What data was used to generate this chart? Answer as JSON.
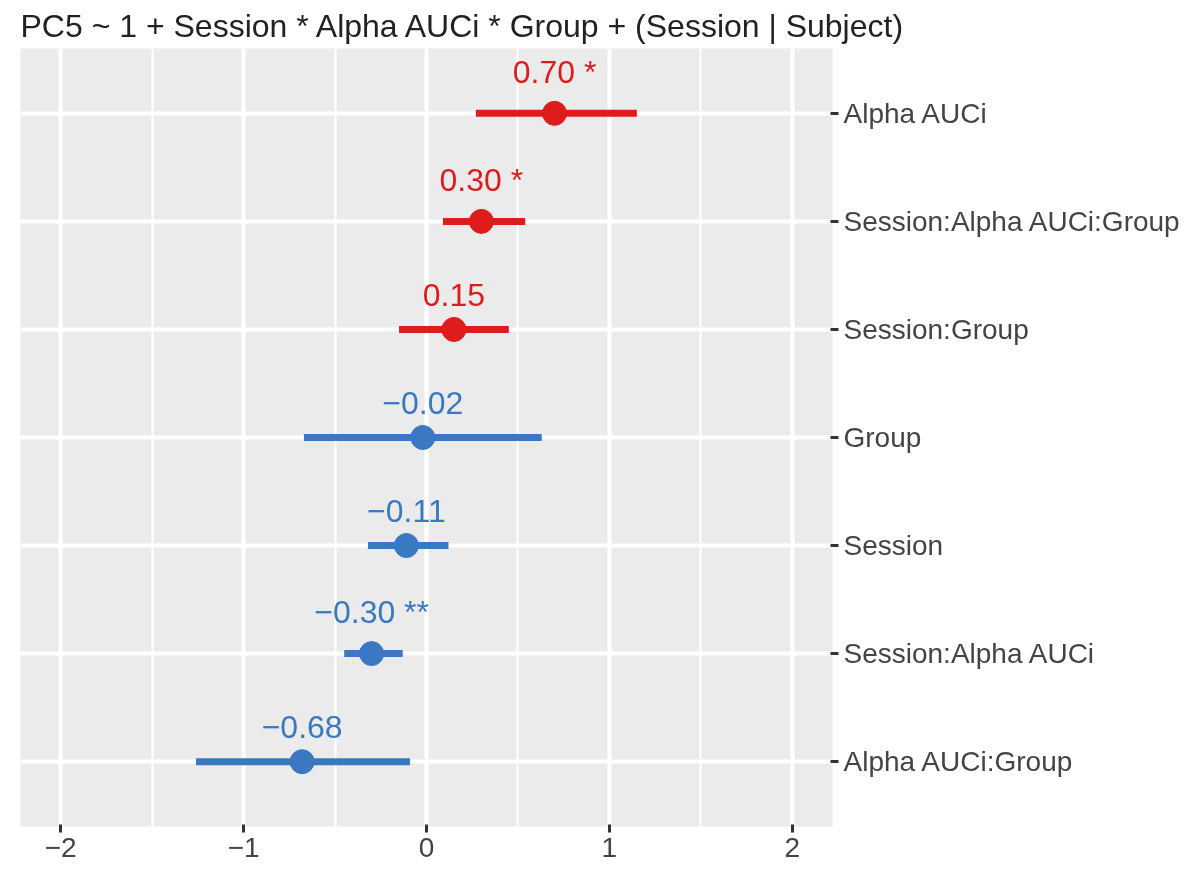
{
  "chart_data": {
    "type": "scatter",
    "orientation": "horizontal",
    "title": "PC5 ~ 1 + Session * Alpha AUCi * Group + (Session | Subject)",
    "categories": [
      "Alpha AUCi",
      "Session:Alpha AUCi:Group",
      "Session:Group",
      "Group",
      "Session",
      "Session:Alpha AUCi",
      "Alpha AUCi:Group"
    ],
    "values": [
      0.7,
      0.3,
      0.15,
      -0.02,
      -0.11,
      -0.3,
      -0.68
    ],
    "errors": [
      [
        0.27,
        1.15
      ],
      [
        0.09,
        0.54
      ],
      [
        -0.15,
        0.45
      ],
      [
        -0.67,
        0.63
      ],
      [
        -0.32,
        0.12
      ],
      [
        -0.45,
        -0.13
      ],
      [
        -1.26,
        -0.09
      ]
    ],
    "colors": [
      "#dd1c1c",
      "#dd1c1c",
      "#dd1c1c",
      "#3a78c0",
      "#3a78c0",
      "#3a78c0",
      "#3a78c0"
    ],
    "value_labels": [
      "0.70 *",
      "0.30 *",
      "0.15",
      "−0.02",
      "−0.11",
      "−0.30 **",
      "−0.68"
    ],
    "xlim": [
      -2.22,
      2.22
    ],
    "xticks": [
      {
        "value": -2,
        "label": "−2"
      },
      {
        "value": -1,
        "label": "−1"
      },
      0,
      1,
      2
    ],
    "grid": true,
    "marker": "circle"
  }
}
